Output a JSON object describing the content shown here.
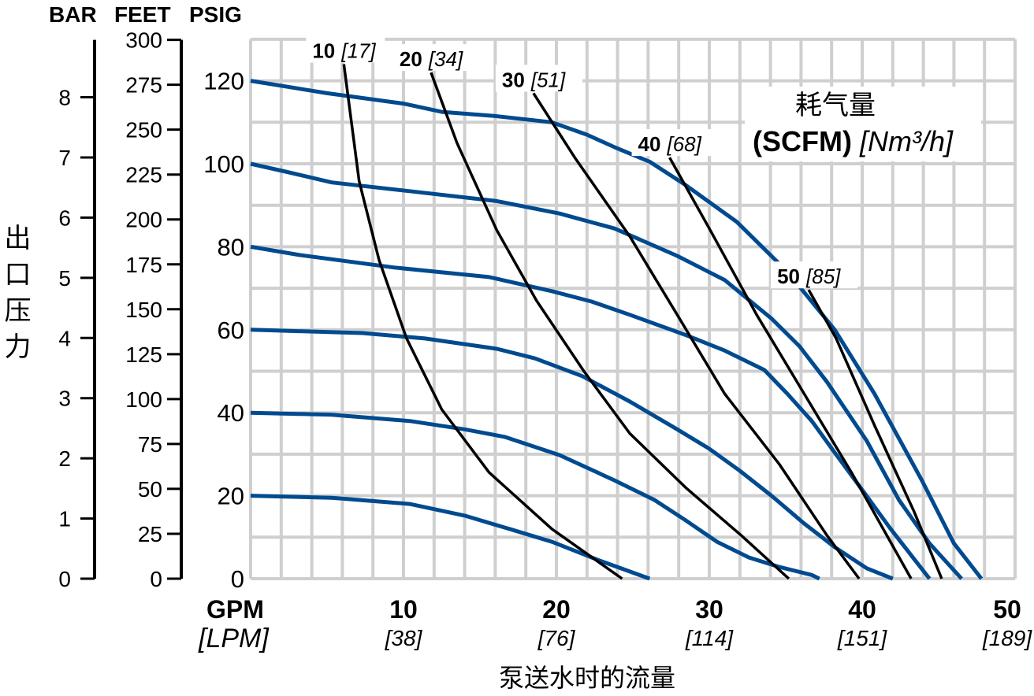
{
  "chart_data": {
    "type": "line",
    "axis_headers": {
      "bar": "BAR",
      "feet": "FEET",
      "psig": "PSIG"
    },
    "ylabel": "出口压力",
    "xlabel": "泵送水时的流量",
    "x_unit_primary": "GPM",
    "x_unit_secondary": "[LPM]",
    "xlim": [
      0,
      50
    ],
    "ylim": [
      0,
      130
    ],
    "x_ticks": [
      {
        "value": 10,
        "label": "10",
        "sub": "[38]"
      },
      {
        "value": 20,
        "label": "20",
        "sub": "[76]"
      },
      {
        "value": 30,
        "label": "30",
        "sub": "[114]"
      },
      {
        "value": 40,
        "label": "40",
        "sub": "[151]"
      },
      {
        "value": 50,
        "label": "50",
        "sub": "[189]"
      }
    ],
    "psig_ticks": [
      "0",
      "20",
      "40",
      "60",
      "80",
      "100",
      "120"
    ],
    "feet_ticks": [
      "0",
      "25",
      "50",
      "75",
      "100",
      "125",
      "150",
      "175",
      "200",
      "225",
      "250",
      "275",
      "300"
    ],
    "bar_ticks": [
      "0",
      "1",
      "2",
      "3",
      "4",
      "5",
      "6",
      "7",
      "8"
    ],
    "grid": true,
    "legend_title": {
      "line1": "耗气量",
      "bold": "(SCFM)",
      "italic": "[Nm³/h]"
    },
    "colors": {
      "pressure_curves": "#004a8f",
      "air_curves": "#000000",
      "grid": "#cfcfcf"
    },
    "pressure_curves": [
      {
        "points": [
          [
            0,
            120
          ],
          [
            5,
            117
          ],
          [
            10,
            114.5
          ],
          [
            12.5,
            112.5
          ],
          [
            16,
            111.5
          ],
          [
            19.7,
            110
          ],
          [
            22,
            107
          ],
          [
            23.8,
            104
          ],
          [
            26.1,
            100.5
          ],
          [
            28.4,
            95
          ],
          [
            31.8,
            86
          ],
          [
            35.1,
            74
          ],
          [
            38.2,
            60
          ],
          [
            40.8,
            44.6
          ],
          [
            43.9,
            23.7
          ],
          [
            46,
            8.5
          ],
          [
            47.8,
            0
          ]
        ]
      },
      {
        "points": [
          [
            0,
            100
          ],
          [
            2.4,
            98
          ],
          [
            5.3,
            95.5
          ],
          [
            10.4,
            93.4
          ],
          [
            16.1,
            91
          ],
          [
            20.2,
            88
          ],
          [
            23.8,
            84.4
          ],
          [
            27.9,
            77.8
          ],
          [
            31,
            72
          ],
          [
            34.1,
            62.6
          ],
          [
            35.9,
            56
          ],
          [
            37.7,
            47.4
          ],
          [
            40.3,
            33.2
          ],
          [
            42.4,
            19
          ],
          [
            44.4,
            8.5
          ],
          [
            46.5,
            0
          ]
        ]
      },
      {
        "points": [
          [
            0,
            80
          ],
          [
            3.2,
            78
          ],
          [
            9.4,
            75
          ],
          [
            15.6,
            72.7
          ],
          [
            19.7,
            69.3
          ],
          [
            22.3,
            66.8
          ],
          [
            24.8,
            63.6
          ],
          [
            28.4,
            58.8
          ],
          [
            31,
            55
          ],
          [
            33.6,
            50.3
          ],
          [
            35.1,
            44.6
          ],
          [
            36.7,
            38
          ],
          [
            38.2,
            30.4
          ],
          [
            40.3,
            19.9
          ],
          [
            41.8,
            12.3
          ],
          [
            43.4,
            4.7
          ],
          [
            44.4,
            0
          ]
        ]
      },
      {
        "points": [
          [
            0,
            60
          ],
          [
            7.3,
            59.2
          ],
          [
            11.4,
            57.9
          ],
          [
            16.1,
            55.4
          ],
          [
            18.6,
            53.1
          ],
          [
            21.7,
            48.8
          ],
          [
            24.8,
            42.7
          ],
          [
            27.9,
            36
          ],
          [
            30,
            31.3
          ],
          [
            32,
            26
          ],
          [
            34.1,
            19.9
          ],
          [
            36.2,
            13.3
          ],
          [
            38.2,
            7.6
          ],
          [
            40.3,
            2.5
          ],
          [
            42,
            0
          ]
        ]
      },
      {
        "points": [
          [
            0,
            40
          ],
          [
            5.3,
            39.5
          ],
          [
            10.4,
            38
          ],
          [
            14,
            36
          ],
          [
            16.6,
            34.2
          ],
          [
            20.2,
            29.8
          ],
          [
            23.8,
            23.7
          ],
          [
            26.4,
            19
          ],
          [
            28.4,
            14.2
          ],
          [
            30.5,
            8.9
          ],
          [
            32.6,
            5.1
          ],
          [
            34.6,
            2.8
          ],
          [
            36.7,
            0.9
          ],
          [
            37.2,
            0
          ]
        ]
      },
      {
        "points": [
          [
            0,
            20
          ],
          [
            5.3,
            19.5
          ],
          [
            8.4,
            18.6
          ],
          [
            10.4,
            18
          ],
          [
            14,
            15.2
          ],
          [
            17.1,
            11.8
          ],
          [
            19.7,
            8.9
          ],
          [
            22.8,
            4.4
          ],
          [
            26.1,
            0
          ]
        ]
      }
    ],
    "air_curves": [
      {
        "label": "10",
        "metric": "[17]",
        "points": [
          [
            6.1,
            124
          ],
          [
            7.1,
            95.8
          ],
          [
            8.4,
            76.8
          ],
          [
            10.2,
            57.9
          ],
          [
            12.5,
            40.8
          ],
          [
            15.6,
            25.6
          ],
          [
            19.7,
            12
          ],
          [
            24.3,
            0
          ]
        ]
      },
      {
        "label": "20",
        "metric": "[34]",
        "points": [
          [
            11.8,
            122
          ],
          [
            13.5,
            105
          ],
          [
            16.1,
            84
          ],
          [
            18.7,
            67
          ],
          [
            21.8,
            50
          ],
          [
            24.8,
            35
          ],
          [
            28.5,
            21.8
          ],
          [
            32.1,
            10.4
          ],
          [
            35.2,
            0
          ]
        ]
      },
      {
        "label": "30",
        "metric": "[51]",
        "points": [
          [
            18.5,
            117
          ],
          [
            21.2,
            101.5
          ],
          [
            24.8,
            82.5
          ],
          [
            27.9,
            63.6
          ],
          [
            31,
            44.6
          ],
          [
            34.6,
            27.5
          ],
          [
            37.7,
            10.4
          ],
          [
            39.8,
            0
          ]
        ]
      },
      {
        "label": "40",
        "metric": "[68]",
        "points": [
          [
            27.4,
            101.5
          ],
          [
            30,
            84.4
          ],
          [
            33.1,
            63.6
          ],
          [
            36.2,
            44.6
          ],
          [
            39.3,
            25.6
          ],
          [
            43.2,
            0
          ]
        ]
      },
      {
        "label": "50",
        "metric": "[85]",
        "points": [
          [
            36.5,
            69.6
          ],
          [
            38.3,
            57.9
          ],
          [
            40.8,
            37
          ],
          [
            43.4,
            16.1
          ],
          [
            45.2,
            0
          ]
        ]
      }
    ]
  }
}
